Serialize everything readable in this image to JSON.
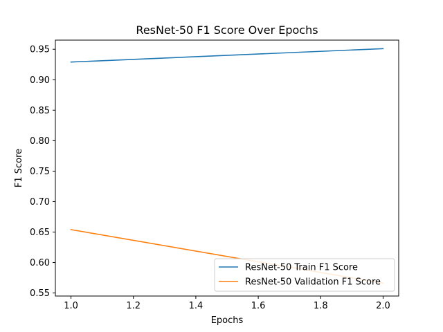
{
  "chart_data": {
    "type": "line",
    "title": "ResNet-50 F1 Score Over Epochs",
    "xlabel": "Epochs",
    "ylabel": "F1 Score",
    "xlim": [
      0.95,
      2.05
    ],
    "ylim": [
      0.545,
      0.965
    ],
    "x_ticks": [
      "1.0",
      "1.2",
      "1.4",
      "1.6",
      "1.8",
      "2.0"
    ],
    "y_ticks": [
      "0.55",
      "0.60",
      "0.65",
      "0.70",
      "0.75",
      "0.80",
      "0.85",
      "0.90",
      "0.95"
    ],
    "grid": false,
    "legend_position": "lower-right",
    "x": [
      1.0,
      2.0
    ],
    "series": [
      {
        "name": "ResNet-50 Train F1 Score",
        "values": [
          0.929,
          0.951
        ],
        "color": "#1f77b4"
      },
      {
        "name": "ResNet-50 Validation F1 Score",
        "values": [
          0.654,
          0.566
        ],
        "color": "#ff7f0e"
      }
    ]
  }
}
